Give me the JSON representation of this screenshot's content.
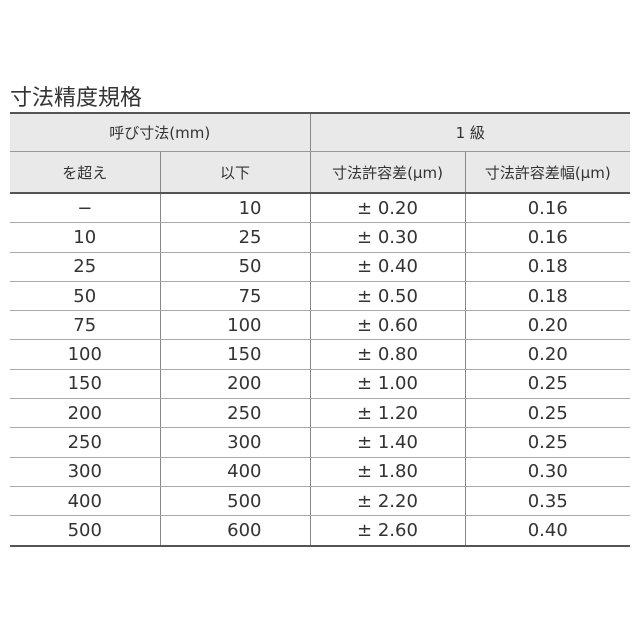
{
  "title": "寸法精度規格",
  "header": {
    "nominal": "呼び寸法(mm)",
    "grade": "1 級",
    "over": "を超え",
    "upto": "以下",
    "tolerance": "寸法許容差(μm)",
    "tolerance_width": "寸法許容差幅(μm)"
  },
  "rows": [
    [
      "−",
      "10",
      "± 0.20",
      "0.16"
    ],
    [
      "10",
      "25",
      "± 0.30",
      "0.16"
    ],
    [
      "25",
      "50",
      "± 0.40",
      "0.18"
    ],
    [
      "50",
      "75",
      "± 0.50",
      "0.18"
    ],
    [
      "75",
      "100",
      "± 0.60",
      "0.20"
    ],
    [
      "100",
      "150",
      "± 0.80",
      "0.20"
    ],
    [
      "150",
      "200",
      "± 1.00",
      "0.25"
    ],
    [
      "200",
      "250",
      "± 1.20",
      "0.25"
    ],
    [
      "250",
      "300",
      "± 1.40",
      "0.25"
    ],
    [
      "300",
      "400",
      "± 1.80",
      "0.30"
    ],
    [
      "400",
      "500",
      "± 2.20",
      "0.35"
    ],
    [
      "500",
      "600",
      "± 2.60",
      "0.40"
    ]
  ]
}
